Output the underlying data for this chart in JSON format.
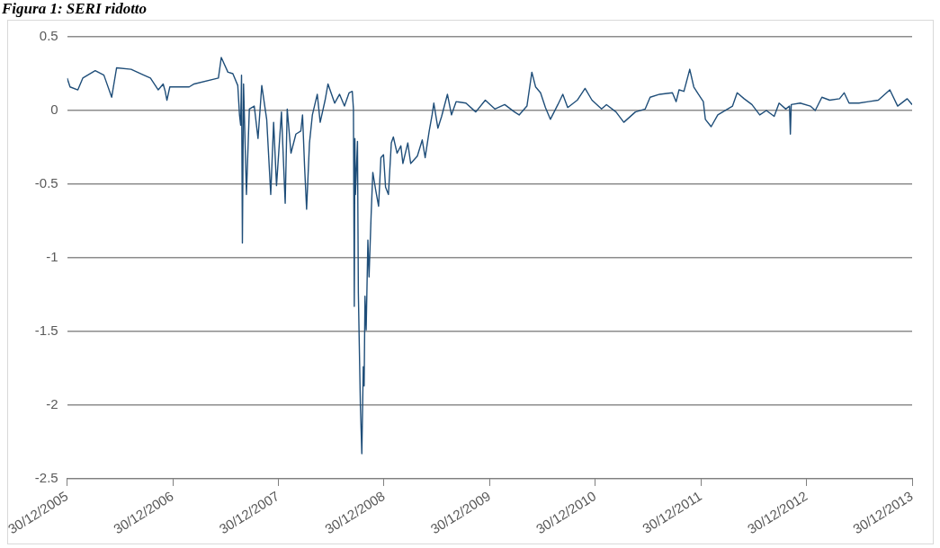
{
  "chart_data": {
    "type": "line",
    "title": "Figura 1: SERI ridotto",
    "series": [
      {
        "color": "#1f4e79",
        "x": [
          "2005-12-30",
          "2006-01-09",
          "2006-02-05",
          "2006-02-22",
          "2006-04-06",
          "2006-05-06",
          "2006-06-02",
          "2006-06-19",
          "2006-08-08",
          "2006-09-21",
          "2006-10-14",
          "2006-11-10",
          "2006-11-27",
          "2006-12-04",
          "2006-12-10",
          "2006-12-20",
          "2007-02-25",
          "2007-03-14",
          "2007-06-06",
          "2007-06-16",
          "2007-07-09",
          "2007-07-26",
          "2007-08-12",
          "2007-08-18",
          "2007-08-22",
          "2007-08-25",
          "2007-08-28",
          "2007-09-01",
          "2007-09-11",
          "2007-09-21",
          "2007-10-08",
          "2007-10-21",
          "2007-11-03",
          "2007-11-20",
          "2007-12-04",
          "2007-12-14",
          "2007-12-24",
          "2008-01-10",
          "2008-01-23",
          "2008-01-30",
          "2008-02-12",
          "2008-02-29",
          "2008-03-17",
          "2008-03-23",
          "2008-03-30",
          "2008-04-06",
          "2008-04-16",
          "2008-04-26",
          "2008-05-13",
          "2008-05-23",
          "2008-06-09",
          "2008-06-19",
          "2008-07-12",
          "2008-07-29",
          "2008-08-15",
          "2008-08-31",
          "2008-09-11",
          "2008-09-15",
          "2008-09-18",
          "2008-09-20",
          "2008-09-22",
          "2008-09-29",
          "2008-10-02",
          "2008-10-09",
          "2008-10-14",
          "2008-10-19",
          "2008-10-22",
          "2008-10-25",
          "2008-10-29",
          "2008-11-04",
          "2008-11-08",
          "2008-11-15",
          "2008-11-21",
          "2008-12-01",
          "2008-12-11",
          "2008-12-19",
          "2008-12-28",
          "2009-01-04",
          "2009-01-14",
          "2009-01-24",
          "2009-01-31",
          "2009-02-13",
          "2009-02-26",
          "2009-03-05",
          "2009-03-22",
          "2009-04-01",
          "2009-04-24",
          "2009-05-11",
          "2009-05-21",
          "2009-06-04",
          "2009-06-14",
          "2009-06-20",
          "2009-07-04",
          "2009-07-17",
          "2009-08-06",
          "2009-08-20",
          "2009-09-05",
          "2009-10-09",
          "2009-11-12",
          "2009-12-15",
          "2010-01-17",
          "2010-02-20",
          "2010-03-26",
          "2010-04-11",
          "2010-05-08",
          "2010-05-25",
          "2010-06-07",
          "2010-06-24",
          "2010-07-11",
          "2010-07-28",
          "2010-08-23",
          "2010-09-09",
          "2010-09-26",
          "2010-10-29",
          "2010-11-25",
          "2010-12-19",
          "2011-01-21",
          "2011-02-07",
          "2011-03-12",
          "2011-04-08",
          "2011-05-18",
          "2011-06-21",
          "2011-07-08",
          "2011-08-10",
          "2011-09-23",
          "2011-10-06",
          "2011-10-16",
          "2011-11-02",
          "2011-11-22",
          "2011-12-06",
          "2011-12-22",
          "2012-01-08",
          "2012-01-15",
          "2012-02-04",
          "2012-02-27",
          "2012-04-01",
          "2012-04-18",
          "2012-05-04",
          "2012-05-28",
          "2012-06-24",
          "2012-07-21",
          "2012-08-13",
          "2012-09-09",
          "2012-09-26",
          "2012-10-19",
          "2012-11-01",
          "2012-11-04",
          "2012-11-07",
          "2012-12-08",
          "2013-01-12",
          "2013-01-29",
          "2013-02-21",
          "2013-03-20",
          "2013-04-23",
          "2013-05-09",
          "2013-05-26",
          "2013-06-29",
          "2013-08-01",
          "2013-09-04",
          "2013-10-14",
          "2013-11-10",
          "2013-12-13",
          "2013-12-30"
        ],
        "values": [
          0.22,
          0.16,
          0.14,
          0.22,
          0.27,
          0.24,
          0.09,
          0.29,
          0.28,
          0.24,
          0.22,
          0.14,
          0.18,
          0.13,
          0.07,
          0.16,
          0.16,
          0.18,
          0.22,
          0.36,
          0.26,
          0.25,
          0.17,
          -0.03,
          -0.1,
          0.24,
          -0.9,
          0.18,
          -0.57,
          0.01,
          0.03,
          -0.19,
          0.17,
          -0.06,
          -0.57,
          -0.08,
          -0.51,
          -0.01,
          -0.63,
          0.01,
          -0.29,
          -0.16,
          -0.14,
          -0.03,
          -0.38,
          -0.67,
          -0.22,
          -0.03,
          0.11,
          -0.08,
          0.07,
          0.18,
          0.05,
          0.11,
          0.03,
          0.12,
          0.13,
          0.01,
          -1.33,
          -0.19,
          -0.57,
          -0.21,
          -1.24,
          -2.0,
          -2.33,
          -1.74,
          -1.87,
          -1.26,
          -1.49,
          -0.88,
          -1.13,
          -0.72,
          -0.42,
          -0.54,
          -0.65,
          -0.32,
          -0.3,
          -0.52,
          -0.57,
          -0.22,
          -0.18,
          -0.29,
          -0.24,
          -0.36,
          -0.22,
          -0.36,
          -0.31,
          -0.2,
          -0.32,
          -0.14,
          -0.03,
          0.05,
          -0.12,
          -0.04,
          0.11,
          -0.03,
          0.06,
          0.05,
          -0.01,
          0.07,
          0.01,
          0.04,
          -0.01,
          -0.03,
          0.03,
          0.26,
          0.16,
          0.12,
          0.02,
          -0.06,
          0.04,
          0.11,
          0.02,
          0.07,
          0.15,
          0.07,
          0.01,
          0.04,
          -0.01,
          -0.08,
          -0.01,
          0.01,
          0.09,
          0.11,
          0.12,
          0.06,
          0.14,
          0.13,
          0.28,
          0.16,
          0.11,
          0.06,
          -0.06,
          -0.11,
          -0.03,
          0.01,
          0.03,
          0.12,
          0.08,
          0.04,
          -0.03,
          0,
          -0.04,
          0.05,
          0.01,
          0.03,
          -0.16,
          0.04,
          0.05,
          0.03,
          0,
          0.09,
          0.07,
          0.08,
          0.12,
          0.05,
          0.05,
          0.06,
          0.07,
          0.14,
          0.03,
          0.08,
          0.04
        ]
      }
    ],
    "xlim": [
      "2005-12-30",
      "2013-12-30"
    ],
    "xticks": [
      {
        "value": "2005-12-30",
        "label": "30/12/2005"
      },
      {
        "value": "2006-12-30",
        "label": "30/12/2006"
      },
      {
        "value": "2007-12-30",
        "label": "30/12/2007"
      },
      {
        "value": "2008-12-30",
        "label": "30/12/2008"
      },
      {
        "value": "2009-12-30",
        "label": "30/12/2009"
      },
      {
        "value": "2010-12-30",
        "label": "30/12/2010"
      },
      {
        "value": "2011-12-30",
        "label": "30/12/2011"
      },
      {
        "value": "2012-12-30",
        "label": "30/12/2012"
      },
      {
        "value": "2013-12-30",
        "label": "30/12/2013"
      }
    ],
    "ylim": [
      -2.5,
      0.5
    ],
    "yticks": [
      -2.5,
      -2,
      -1.5,
      -1,
      -0.5,
      0,
      0.5
    ],
    "grid": "y",
    "legend": false,
    "marker": "none",
    "line_style": "solid"
  }
}
